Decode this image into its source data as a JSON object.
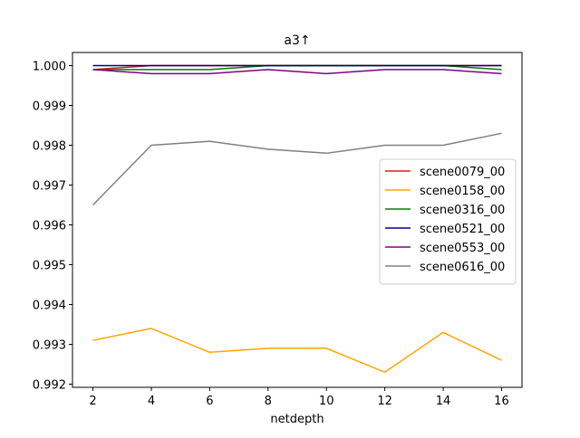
{
  "chart_data": {
    "type": "line",
    "title": "a3↑",
    "xlabel": "netdepth",
    "ylabel": "",
    "x": [
      2,
      4,
      6,
      8,
      10,
      12,
      14,
      16
    ],
    "xticks": [
      2,
      4,
      6,
      8,
      10,
      12,
      14,
      16
    ],
    "xtick_labels": [
      "2",
      "4",
      "6",
      "8",
      "10",
      "12",
      "14",
      "16"
    ],
    "yticks": [
      0.992,
      0.993,
      0.994,
      0.995,
      0.996,
      0.997,
      0.998,
      0.999,
      1.0
    ],
    "ytick_labels": [
      "0.992",
      "0.993",
      "0.994",
      "0.995",
      "0.996",
      "0.997",
      "0.998",
      "0.999",
      "1.000"
    ],
    "xlim": [
      1.3,
      16.7
    ],
    "ylim": [
      0.99192,
      1.00033
    ],
    "grid": false,
    "legend_position": "center-right",
    "series": [
      {
        "name": "scene0079_00",
        "color": "#d62020",
        "values": [
          0.9999,
          1.0,
          1.0,
          1.0,
          1.0,
          1.0,
          1.0,
          1.0
        ]
      },
      {
        "name": "scene0158_00",
        "color": "#ffa500",
        "values": [
          0.9931,
          0.9934,
          0.9928,
          0.9929,
          0.9929,
          0.9923,
          0.9933,
          0.9926
        ]
      },
      {
        "name": "scene0316_00",
        "color": "#008000",
        "values": [
          0.9999,
          0.9999,
          0.9999,
          1.0,
          1.0,
          1.0,
          1.0,
          0.9999
        ]
      },
      {
        "name": "scene0521_00",
        "color": "#00008b",
        "values": [
          1.0,
          1.0,
          1.0,
          1.0,
          1.0,
          1.0,
          1.0,
          1.0
        ]
      },
      {
        "name": "scene0553_00",
        "color": "#800080",
        "values": [
          0.9999,
          0.9998,
          0.9998,
          0.9999,
          0.9998,
          0.9999,
          0.9999,
          0.9998
        ]
      },
      {
        "name": "scene0616_00",
        "color": "#808080",
        "values": [
          0.9965,
          0.998,
          0.9981,
          0.9979,
          0.9978,
          0.998,
          0.998,
          0.9983
        ]
      }
    ]
  }
}
